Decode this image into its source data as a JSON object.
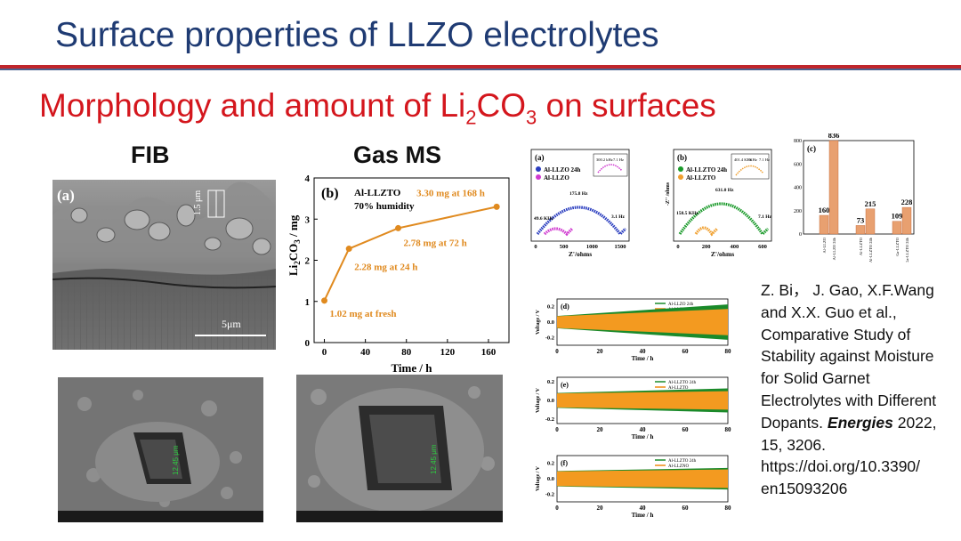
{
  "slide": {
    "title": "Surface properties of  LLZO electrolytes",
    "subtitle_pre": "Morphology and amount of Li",
    "subtitle_sub1": "2",
    "subtitle_mid": "CO",
    "subtitle_sub2": "3",
    "subtitle_post": " on surfaces",
    "hdr_fib": "FIB",
    "hdr_gasms": "Gas MS"
  },
  "sem_a": {
    "panel_label": "(a)",
    "scale_vertical": "1.5 μm",
    "scale_bar": "5μm"
  },
  "sem_b": {
    "measure": "12.45 μm"
  },
  "sem_c": {
    "measure": "12.45 μm"
  },
  "chart_data": [
    {
      "id": "li2co3",
      "type": "line",
      "panel_label": "(b)",
      "note1": "Al-LLZTO",
      "note2": "70% humidity",
      "xlabel": "Time / h",
      "ylabel": "Li2CO3 / mg",
      "x": [
        0,
        24,
        72,
        168
      ],
      "values": [
        1.02,
        2.28,
        2.78,
        3.3
      ],
      "point_labels": [
        "1.02 mg at fresh",
        "2.28 mg at 24 h",
        "2.78 mg at 72 h",
        "3.30 mg at 168 h"
      ],
      "xlim": [
        -10,
        180
      ],
      "ylim": [
        0,
        4
      ],
      "xticks": [
        "0",
        "40",
        "80",
        "120",
        "160"
      ],
      "yticks": [
        "0",
        "1",
        "2",
        "3",
        "4"
      ],
      "color": "#e08a1f"
    },
    {
      "id": "eis_a",
      "type": "scatter",
      "panel_label": "(a)",
      "legend": [
        "Al-LLZO 24h",
        "Al-LLZO"
      ],
      "xlabel": "Z'/ohms",
      "annotations": [
        "175.8 Hz",
        "49.6 KHz",
        "3.1 Hz"
      ],
      "inset_annotations": [
        "300.2 kHz",
        "7.1 Hz"
      ],
      "xticks": [
        "0",
        "500",
        "1000",
        "1500"
      ],
      "colors": [
        "#2a3dbf",
        "#d03ad0"
      ]
    },
    {
      "id": "eis_b",
      "type": "scatter",
      "panel_label": "(b)",
      "legend": [
        "Al-LLZTO 24h",
        "Al-LLZTO"
      ],
      "xlabel": "Z'/ohms",
      "ylabel": "-Z'' /ohms",
      "annotations": [
        "631.0 Hz",
        "158.5 KHz",
        "7.1 Hz"
      ],
      "inset_annotations": [
        "401.4 KHz",
        "1 KHz",
        "7.1 Hz"
      ],
      "xticks": [
        "0",
        "200",
        "400",
        "600"
      ],
      "colors": [
        "#1a9a2a",
        "#f0a030"
      ]
    },
    {
      "id": "resistance",
      "type": "bar",
      "panel_label": "(c)",
      "categories": [
        "Al-LLZO",
        "Al-LLZO 24h",
        "Al-LLZTO",
        "Al-LLZTO 24h",
        "Ga-LLZTO",
        "Ga-LLZTO 24h"
      ],
      "values": [
        160,
        836,
        73,
        215,
        109,
        228
      ],
      "ylim": [
        0,
        800
      ],
      "yticks": [
        "0",
        "200",
        "400",
        "600",
        "800"
      ],
      "color": "#e8a070"
    },
    {
      "id": "cycle_d",
      "type": "area",
      "panel_label": "(d)",
      "legend": [
        "Al-LLZO 24h",
        "Al-LLZO"
      ],
      "xlabel": "Time / h",
      "ylabel": "Voltage / V",
      "xticks": [
        "0",
        "20",
        "40",
        "60",
        "80"
      ],
      "yticks": [
        "0.2",
        "0.0",
        "-0.2"
      ],
      "ylim": [
        -0.3,
        0.3
      ],
      "amp_start": 0.08,
      "amp_end": 0.23,
      "amp_end_inner": 0.17
    },
    {
      "id": "cycle_e",
      "type": "area",
      "panel_label": "(e)",
      "legend": [
        "Al-LLZTO 24h",
        "Al-LLZTO"
      ],
      "xlabel": "Time / h",
      "ylabel": "Voltage / V",
      "xticks": [
        "0",
        "20",
        "40",
        "60",
        "80"
      ],
      "yticks": [
        "0.2",
        "0.0",
        "-0.2"
      ],
      "ylim": [
        -0.25,
        0.25
      ],
      "amp_start": 0.08,
      "amp_end": 0.13,
      "amp_end_inner": 0.1
    },
    {
      "id": "cycle_f",
      "type": "area",
      "panel_label": "(f)",
      "legend": [
        "Al-LLZTO 24h",
        "Al-LLZNO"
      ],
      "xlabel": "Time / h",
      "ylabel": "Voltage / V",
      "xticks": [
        "0",
        "20",
        "40",
        "60",
        "80"
      ],
      "yticks": [
        "0.2",
        "0.0",
        "-0.2"
      ],
      "ylim": [
        -0.3,
        0.3
      ],
      "amp_start": 0.1,
      "amp_end": 0.14,
      "amp_end_inner": 0.12
    }
  ],
  "citation": {
    "authors": "Z. Bi， J. Gao, X.F.Wang and X.X. Guo et al.,",
    "title": "Comparative Study of Stability against Moisture for Solid Garnet Electrolytes with Different Dopants.",
    "journal": "Energies",
    "details": "2022, 15, 3206.",
    "doi": "https://doi.org/10.3390/ en15093206"
  }
}
